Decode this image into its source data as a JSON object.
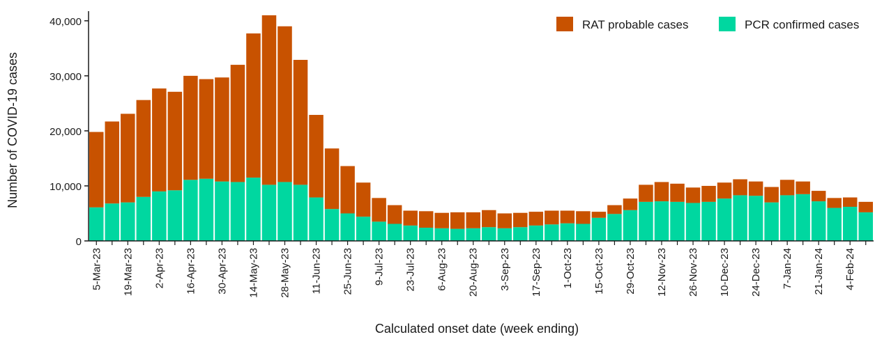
{
  "chart_data": {
    "type": "bar",
    "stacked": true,
    "title": "",
    "xlabel": "Calculated onset date (week ending)",
    "ylabel": "Number of COVID-19 cases",
    "ylim": [
      0,
      41500
    ],
    "yticks": [
      0,
      10000,
      20000,
      30000,
      40000
    ],
    "ytick_labels": [
      "0",
      "10,000",
      "20,000",
      "30,000",
      "40,000"
    ],
    "grid": false,
    "legend_position": "top-right",
    "categories": [
      "5-Mar-23",
      "12-Mar-23",
      "19-Mar-23",
      "26-Mar-23",
      "2-Apr-23",
      "9-Apr-23",
      "16-Apr-23",
      "23-Apr-23",
      "30-Apr-23",
      "7-May-23",
      "14-May-23",
      "21-May-23",
      "28-May-23",
      "4-Jun-23",
      "11-Jun-23",
      "18-Jun-23",
      "25-Jun-23",
      "2-Jul-23",
      "9-Jul-23",
      "16-Jul-23",
      "23-Jul-23",
      "30-Jul-23",
      "6-Aug-23",
      "13-Aug-23",
      "20-Aug-23",
      "27-Aug-23",
      "3-Sep-23",
      "10-Sep-23",
      "17-Sep-23",
      "24-Sep-23",
      "1-Oct-23",
      "8-Oct-23",
      "15-Oct-23",
      "22-Oct-23",
      "29-Oct-23",
      "5-Nov-23",
      "12-Nov-23",
      "19-Nov-23",
      "26-Nov-23",
      "3-Dec-23",
      "10-Dec-23",
      "17-Dec-23",
      "24-Dec-23",
      "31-Dec-23",
      "7-Jan-24",
      "14-Jan-24",
      "21-Jan-24",
      "28-Jan-24",
      "4-Feb-24",
      "11-Feb-24"
    ],
    "tick_labels_shown": [
      "5-Mar-23",
      "",
      "19-Mar-23",
      "",
      "2-Apr-23",
      "",
      "16-Apr-23",
      "",
      "30-Apr-23",
      "",
      "14-May-23",
      "",
      "28-May-23",
      "",
      "11-Jun-23",
      "",
      "25-Jun-23",
      "",
      "9-Jul-23",
      "",
      "23-Jul-23",
      "",
      "6-Aug-23",
      "",
      "20-Aug-23",
      "",
      "3-Sep-23",
      "",
      "17-Sep-23",
      "",
      "1-Oct-23",
      "",
      "15-Oct-23",
      "",
      "29-Oct-23",
      "",
      "12-Nov-23",
      "",
      "26-Nov-23",
      "",
      "10-Dec-23",
      "",
      "24-Dec-23",
      "",
      "7-Jan-24",
      "",
      "21-Jan-24",
      "",
      "4-Feb-24",
      ""
    ],
    "series": [
      {
        "name": "PCR confirmed cases",
        "color": "#00d7a0",
        "values": [
          6100,
          6800,
          7000,
          8000,
          9000,
          9200,
          11100,
          11300,
          10800,
          10700,
          11500,
          10200,
          10700,
          10200,
          7900,
          5800,
          5000,
          4400,
          3500,
          3100,
          2800,
          2400,
          2300,
          2200,
          2300,
          2500,
          2300,
          2500,
          2800,
          3000,
          3200,
          3100,
          4200,
          4900,
          5600,
          7100,
          7200,
          7100,
          6900,
          7100,
          7700,
          8300,
          8200,
          7000,
          8300,
          8500,
          7200,
          6000,
          6200,
          5200
        ]
      },
      {
        "name": "RAT probable cases",
        "color": "#c85200",
        "values": [
          13700,
          14900,
          16100,
          17600,
          18700,
          17900,
          18900,
          18100,
          18900,
          21300,
          26200,
          30800,
          28300,
          22700,
          15000,
          11000,
          8600,
          6200,
          4300,
          3400,
          2700,
          3000,
          2800,
          3000,
          2900,
          3100,
          2700,
          2600,
          2500,
          2500,
          2300,
          2300,
          1100,
          1600,
          2100,
          3100,
          3500,
          3300,
          2800,
          2900,
          2900,
          2900,
          2600,
          2800,
          2800,
          2300,
          1900,
          1800,
          1700,
          1900
        ]
      }
    ]
  }
}
